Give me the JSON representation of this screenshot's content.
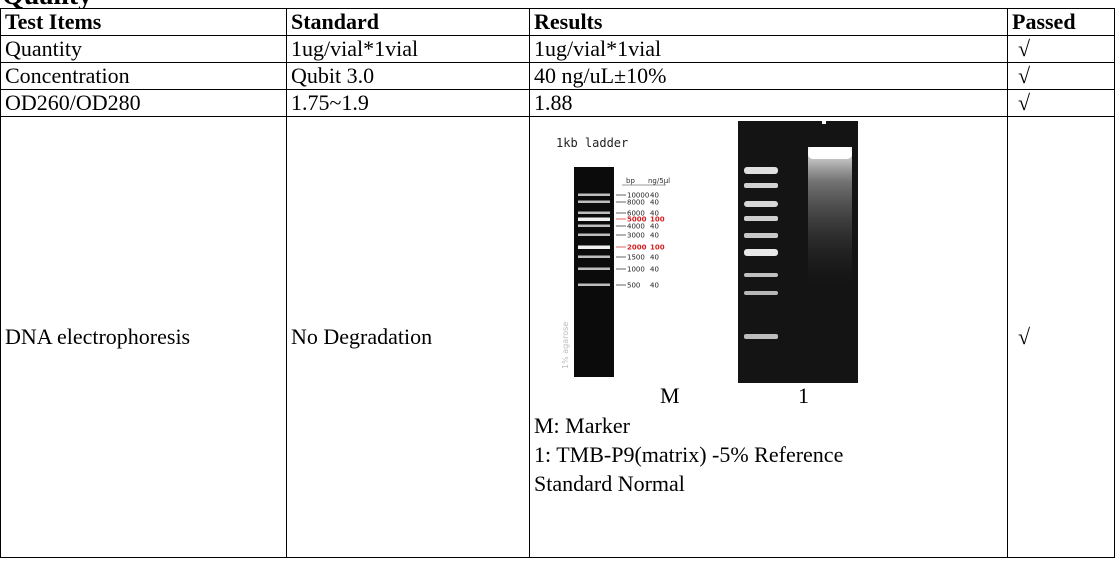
{
  "heading": "Quality",
  "table": {
    "headers": [
      "Test Items",
      "Standard",
      "Results",
      "Passed"
    ],
    "rows": [
      {
        "item": "Quantity",
        "standard": "1ug/vial*1vial",
        "result": "1ug/vial*1vial",
        "passed": "√"
      },
      {
        "item": "Concentration",
        "standard": "Qubit 3.0",
        "result": "40 ng/uL±10%",
        "passed": "√"
      },
      {
        "item": "OD260/OD280",
        "standard": "1.75~1.9",
        "result": "1.88",
        "passed": "√"
      },
      {
        "item": "DNA electrophoresis",
        "standard": "No Degradation",
        "passed": "√"
      }
    ]
  },
  "gel": {
    "ladder_title": "1kb ladder",
    "ladder_header_bp": "bp",
    "ladder_header_ng": "ng/5µl",
    "ladder_bands": [
      {
        "bp": "10000",
        "ng": "40",
        "highlight": false
      },
      {
        "bp": "8000",
        "ng": "40",
        "highlight": false
      },
      {
        "bp": "6000",
        "ng": "40",
        "highlight": false
      },
      {
        "bp": "5000",
        "ng": "100",
        "highlight": true
      },
      {
        "bp": "4000",
        "ng": "40",
        "highlight": false
      },
      {
        "bp": "3000",
        "ng": "40",
        "highlight": false
      },
      {
        "bp": "2000",
        "ng": "100",
        "highlight": true
      },
      {
        "bp": "1500",
        "ng": "40",
        "highlight": false
      },
      {
        "bp": "1000",
        "ng": "40",
        "highlight": false
      },
      {
        "bp": "500",
        "ng": "40",
        "highlight": false
      }
    ],
    "agarose_label": "1% agarose",
    "lane_m": "M",
    "lane_1": "1",
    "legend_line1": "M: Marker",
    "legend_line2": "1: TMB-P9(matrix) -5% Reference",
    "legend_line3": "Standard  Normal",
    "highlight_color": "#d42020"
  }
}
